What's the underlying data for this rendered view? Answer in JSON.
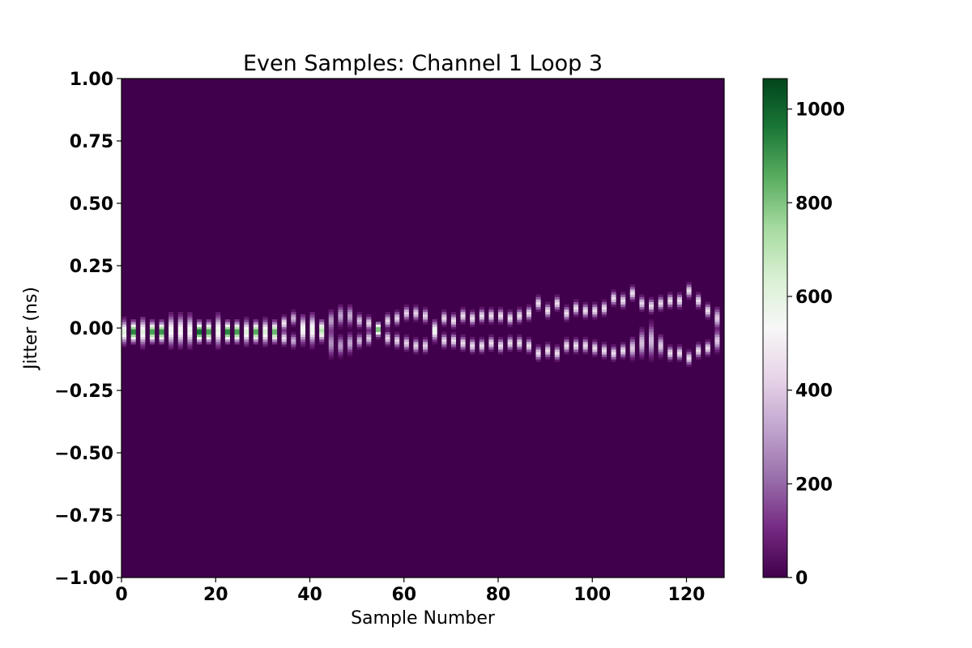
{
  "chart_data": {
    "type": "heatmap",
    "title": "Even Samples: Channel 1 Loop 3",
    "xlabel": "Sample Number",
    "ylabel": "Jitter (ns)",
    "xlim": [
      0,
      128
    ],
    "ylim": [
      -1.0,
      1.0
    ],
    "x_ticks": [
      0,
      20,
      40,
      60,
      80,
      100,
      120
    ],
    "x_tick_labels": [
      "0",
      "20",
      "40",
      "60",
      "80",
      "100",
      "120"
    ],
    "y_ticks": [
      1.0,
      0.75,
      0.5,
      0.25,
      0.0,
      -0.25,
      -0.5,
      -0.75,
      -1.0
    ],
    "y_tick_labels": [
      "1.00",
      "0.75",
      "0.50",
      "0.25",
      "0.00",
      "−0.25",
      "−0.50",
      "−0.75",
      "−1.00"
    ],
    "colorbar": {
      "min": 0,
      "max": 1065,
      "ticks": [
        0,
        200,
        400,
        600,
        800,
        1000
      ],
      "tick_labels": [
        "0",
        "200",
        "400",
        "600",
        "800",
        "1000"
      ],
      "colormap": "PRGn",
      "stops": [
        "#40004b",
        "#762a83",
        "#9970ab",
        "#c2a5cf",
        "#e7d4e8",
        "#f7f7f7",
        "#d9f0d3",
        "#a6dba0",
        "#5aae61",
        "#1b7837",
        "#00441b"
      ]
    },
    "grid": false,
    "x_bin_width": 1,
    "y_bin_width": 0.01,
    "columns": [
      {
        "x": 0,
        "bands": [
          {
            "center": -0.015,
            "halfwidth": 0.035,
            "peak": 620
          }
        ]
      },
      {
        "x": 2,
        "bands": [
          {
            "center": -0.015,
            "halfwidth": 0.03,
            "peak": 950
          }
        ]
      },
      {
        "x": 4,
        "bands": [
          {
            "center": -0.015,
            "halfwidth": 0.04,
            "peak": 600
          }
        ]
      },
      {
        "x": 6,
        "bands": [
          {
            "center": -0.015,
            "halfwidth": 0.03,
            "peak": 900
          }
        ]
      },
      {
        "x": 8,
        "bands": [
          {
            "center": -0.015,
            "halfwidth": 0.03,
            "peak": 920
          }
        ]
      },
      {
        "x": 10,
        "bands": [
          {
            "center": -0.01,
            "halfwidth": 0.045,
            "peak": 560
          }
        ]
      },
      {
        "x": 12,
        "bands": [
          {
            "center": -0.01,
            "halfwidth": 0.045,
            "peak": 560
          }
        ]
      },
      {
        "x": 14,
        "bands": [
          {
            "center": -0.01,
            "halfwidth": 0.045,
            "peak": 560
          }
        ]
      },
      {
        "x": 16,
        "bands": [
          {
            "center": -0.015,
            "halfwidth": 0.03,
            "peak": 1000
          }
        ]
      },
      {
        "x": 18,
        "bands": [
          {
            "center": -0.015,
            "halfwidth": 0.03,
            "peak": 900
          }
        ]
      },
      {
        "x": 20,
        "bands": [
          {
            "center": -0.01,
            "halfwidth": 0.045,
            "peak": 580
          }
        ]
      },
      {
        "x": 22,
        "bands": [
          {
            "center": -0.015,
            "halfwidth": 0.03,
            "peak": 950
          }
        ]
      },
      {
        "x": 24,
        "bands": [
          {
            "center": -0.015,
            "halfwidth": 0.03,
            "peak": 900
          }
        ]
      },
      {
        "x": 26,
        "bands": [
          {
            "center": -0.015,
            "halfwidth": 0.035,
            "peak": 620
          }
        ]
      },
      {
        "x": 28,
        "bands": [
          {
            "center": -0.015,
            "halfwidth": 0.03,
            "peak": 880
          }
        ]
      },
      {
        "x": 30,
        "bands": [
          {
            "center": -0.015,
            "halfwidth": 0.035,
            "peak": 640
          }
        ]
      },
      {
        "x": 32,
        "bands": [
          {
            "center": -0.015,
            "halfwidth": 0.03,
            "peak": 850
          }
        ]
      },
      {
        "x": 34,
        "bands": [
          {
            "center": 0.02,
            "halfwidth": 0.02,
            "peak": 480
          },
          {
            "center": -0.04,
            "halfwidth": 0.02,
            "peak": 450
          }
        ]
      },
      {
        "x": 36,
        "bands": [
          {
            "center": 0.04,
            "halfwidth": 0.02,
            "peak": 350
          },
          {
            "center": -0.05,
            "halfwidth": 0.02,
            "peak": 330
          }
        ]
      },
      {
        "x": 38,
        "bands": [
          {
            "center": -0.005,
            "halfwidth": 0.04,
            "peak": 560
          }
        ]
      },
      {
        "x": 40,
        "bands": [
          {
            "center": -0.005,
            "halfwidth": 0.045,
            "peak": 570
          }
        ]
      },
      {
        "x": 42,
        "bands": [
          {
            "center": -0.01,
            "halfwidth": 0.03,
            "peak": 720
          }
        ]
      },
      {
        "x": 44,
        "bands": [
          {
            "center": 0.03,
            "halfwidth": 0.03,
            "peak": 300
          },
          {
            "center": -0.06,
            "halfwidth": 0.04,
            "peak": 280
          }
        ]
      },
      {
        "x": 46,
        "bands": [
          {
            "center": 0.05,
            "halfwidth": 0.03,
            "peak": 320
          },
          {
            "center": -0.07,
            "halfwidth": 0.03,
            "peak": 300
          }
        ]
      },
      {
        "x": 48,
        "bands": [
          {
            "center": 0.05,
            "halfwidth": 0.03,
            "peak": 330
          },
          {
            "center": -0.06,
            "halfwidth": 0.03,
            "peak": 320
          }
        ]
      },
      {
        "x": 50,
        "bands": [
          {
            "center": 0.03,
            "halfwidth": 0.02,
            "peak": 380
          },
          {
            "center": -0.05,
            "halfwidth": 0.02,
            "peak": 360
          }
        ]
      },
      {
        "x": 52,
        "bands": [
          {
            "center": 0.02,
            "halfwidth": 0.02,
            "peak": 430
          },
          {
            "center": -0.04,
            "halfwidth": 0.02,
            "peak": 400
          }
        ]
      },
      {
        "x": 54,
        "bands": [
          {
            "center": -0.005,
            "halfwidth": 0.02,
            "peak": 850
          }
        ]
      },
      {
        "x": 56,
        "bands": [
          {
            "center": 0.03,
            "halfwidth": 0.02,
            "peak": 430
          },
          {
            "center": -0.04,
            "halfwidth": 0.02,
            "peak": 420
          }
        ]
      },
      {
        "x": 58,
        "bands": [
          {
            "center": 0.04,
            "halfwidth": 0.02,
            "peak": 420
          },
          {
            "center": -0.05,
            "halfwidth": 0.02,
            "peak": 420
          }
        ]
      },
      {
        "x": 60,
        "bands": [
          {
            "center": 0.06,
            "halfwidth": 0.02,
            "peak": 420
          },
          {
            "center": -0.06,
            "halfwidth": 0.02,
            "peak": 420
          }
        ]
      },
      {
        "x": 62,
        "bands": [
          {
            "center": 0.06,
            "halfwidth": 0.02,
            "peak": 420
          },
          {
            "center": -0.07,
            "halfwidth": 0.02,
            "peak": 420
          }
        ]
      },
      {
        "x": 64,
        "bands": [
          {
            "center": 0.05,
            "halfwidth": 0.02,
            "peak": 420
          },
          {
            "center": -0.07,
            "halfwidth": 0.02,
            "peak": 420
          }
        ]
      },
      {
        "x": 66,
        "bands": [
          {
            "center": -0.01,
            "halfwidth": 0.03,
            "peak": 560
          }
        ]
      },
      {
        "x": 68,
        "bands": [
          {
            "center": 0.04,
            "halfwidth": 0.02,
            "peak": 430
          },
          {
            "center": -0.05,
            "halfwidth": 0.02,
            "peak": 430
          }
        ]
      },
      {
        "x": 70,
        "bands": [
          {
            "center": 0.03,
            "halfwidth": 0.02,
            "peak": 450
          },
          {
            "center": -0.05,
            "halfwidth": 0.02,
            "peak": 450
          }
        ]
      },
      {
        "x": 72,
        "bands": [
          {
            "center": 0.05,
            "halfwidth": 0.02,
            "peak": 450
          },
          {
            "center": -0.06,
            "halfwidth": 0.02,
            "peak": 450
          }
        ]
      },
      {
        "x": 74,
        "bands": [
          {
            "center": 0.04,
            "halfwidth": 0.02,
            "peak": 450
          },
          {
            "center": -0.07,
            "halfwidth": 0.02,
            "peak": 450
          }
        ]
      },
      {
        "x": 76,
        "bands": [
          {
            "center": 0.05,
            "halfwidth": 0.02,
            "peak": 450
          },
          {
            "center": -0.07,
            "halfwidth": 0.02,
            "peak": 450
          }
        ]
      },
      {
        "x": 78,
        "bands": [
          {
            "center": 0.05,
            "halfwidth": 0.02,
            "peak": 450
          },
          {
            "center": -0.06,
            "halfwidth": 0.02,
            "peak": 450
          }
        ]
      },
      {
        "x": 80,
        "bands": [
          {
            "center": 0.05,
            "halfwidth": 0.02,
            "peak": 450
          },
          {
            "center": -0.07,
            "halfwidth": 0.02,
            "peak": 450
          }
        ]
      },
      {
        "x": 82,
        "bands": [
          {
            "center": 0.04,
            "halfwidth": 0.02,
            "peak": 450
          },
          {
            "center": -0.06,
            "halfwidth": 0.02,
            "peak": 450
          }
        ]
      },
      {
        "x": 84,
        "bands": [
          {
            "center": 0.05,
            "halfwidth": 0.02,
            "peak": 450
          },
          {
            "center": -0.06,
            "halfwidth": 0.02,
            "peak": 450
          }
        ]
      },
      {
        "x": 86,
        "bands": [
          {
            "center": 0.06,
            "halfwidth": 0.02,
            "peak": 450
          },
          {
            "center": -0.07,
            "halfwidth": 0.02,
            "peak": 450
          }
        ]
      },
      {
        "x": 88,
        "bands": [
          {
            "center": 0.1,
            "halfwidth": 0.02,
            "peak": 450
          },
          {
            "center": -0.1,
            "halfwidth": 0.02,
            "peak": 450
          }
        ]
      },
      {
        "x": 90,
        "bands": [
          {
            "center": 0.07,
            "halfwidth": 0.02,
            "peak": 450
          },
          {
            "center": -0.09,
            "halfwidth": 0.02,
            "peak": 450
          }
        ]
      },
      {
        "x": 92,
        "bands": [
          {
            "center": 0.1,
            "halfwidth": 0.02,
            "peak": 450
          },
          {
            "center": -0.1,
            "halfwidth": 0.02,
            "peak": 450
          }
        ]
      },
      {
        "x": 94,
        "bands": [
          {
            "center": 0.06,
            "halfwidth": 0.02,
            "peak": 450
          },
          {
            "center": -0.07,
            "halfwidth": 0.02,
            "peak": 450
          }
        ]
      },
      {
        "x": 96,
        "bands": [
          {
            "center": 0.08,
            "halfwidth": 0.02,
            "peak": 450
          },
          {
            "center": -0.07,
            "halfwidth": 0.02,
            "peak": 450
          }
        ]
      },
      {
        "x": 98,
        "bands": [
          {
            "center": 0.07,
            "halfwidth": 0.02,
            "peak": 450
          },
          {
            "center": -0.07,
            "halfwidth": 0.02,
            "peak": 450
          }
        ]
      },
      {
        "x": 100,
        "bands": [
          {
            "center": 0.07,
            "halfwidth": 0.02,
            "peak": 450
          },
          {
            "center": -0.08,
            "halfwidth": 0.02,
            "peak": 450
          }
        ]
      },
      {
        "x": 102,
        "bands": [
          {
            "center": 0.08,
            "halfwidth": 0.02,
            "peak": 450
          },
          {
            "center": -0.09,
            "halfwidth": 0.02,
            "peak": 450
          }
        ]
      },
      {
        "x": 104,
        "bands": [
          {
            "center": 0.12,
            "halfwidth": 0.02,
            "peak": 450
          },
          {
            "center": -0.1,
            "halfwidth": 0.02,
            "peak": 450
          }
        ]
      },
      {
        "x": 106,
        "bands": [
          {
            "center": 0.11,
            "halfwidth": 0.02,
            "peak": 450
          },
          {
            "center": -0.09,
            "halfwidth": 0.02,
            "peak": 450
          }
        ]
      },
      {
        "x": 108,
        "bands": [
          {
            "center": 0.14,
            "halfwidth": 0.02,
            "peak": 450
          },
          {
            "center": -0.08,
            "halfwidth": 0.03,
            "peak": 400
          }
        ]
      },
      {
        "x": 110,
        "bands": [
          {
            "center": 0.1,
            "halfwidth": 0.02,
            "peak": 430
          },
          {
            "center": -0.06,
            "halfwidth": 0.04,
            "peak": 380
          }
        ]
      },
      {
        "x": 112,
        "bands": [
          {
            "center": 0.09,
            "halfwidth": 0.02,
            "peak": 430
          },
          {
            "center": -0.05,
            "halfwidth": 0.05,
            "peak": 360
          }
        ]
      },
      {
        "x": 114,
        "bands": [
          {
            "center": 0.1,
            "halfwidth": 0.02,
            "peak": 430
          },
          {
            "center": -0.07,
            "halfwidth": 0.03,
            "peak": 400
          }
        ]
      },
      {
        "x": 116,
        "bands": [
          {
            "center": 0.11,
            "halfwidth": 0.02,
            "peak": 450
          },
          {
            "center": -0.1,
            "halfwidth": 0.02,
            "peak": 450
          }
        ]
      },
      {
        "x": 118,
        "bands": [
          {
            "center": 0.11,
            "halfwidth": 0.02,
            "peak": 450
          },
          {
            "center": -0.1,
            "halfwidth": 0.02,
            "peak": 450
          }
        ]
      },
      {
        "x": 120,
        "bands": [
          {
            "center": 0.15,
            "halfwidth": 0.02,
            "peak": 450
          },
          {
            "center": -0.12,
            "halfwidth": 0.02,
            "peak": 450
          }
        ]
      },
      {
        "x": 122,
        "bands": [
          {
            "center": 0.11,
            "halfwidth": 0.02,
            "peak": 450
          },
          {
            "center": -0.09,
            "halfwidth": 0.02,
            "peak": 450
          }
        ]
      },
      {
        "x": 124,
        "bands": [
          {
            "center": 0.07,
            "halfwidth": 0.02,
            "peak": 450
          },
          {
            "center": -0.08,
            "halfwidth": 0.02,
            "peak": 450
          }
        ]
      },
      {
        "x": 126,
        "bands": [
          {
            "center": 0.04,
            "halfwidth": 0.03,
            "peak": 400
          },
          {
            "center": -0.05,
            "halfwidth": 0.03,
            "peak": 400
          }
        ]
      }
    ]
  }
}
